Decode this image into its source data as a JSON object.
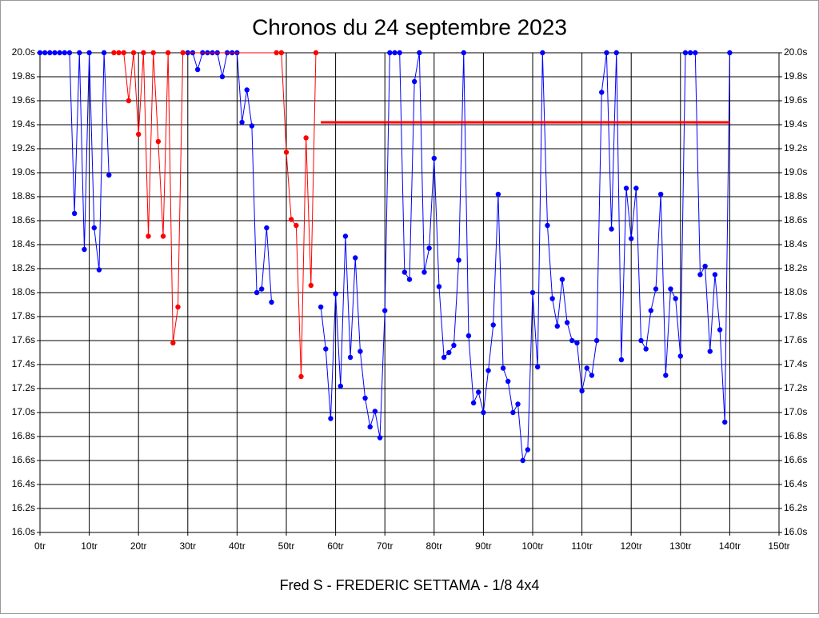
{
  "chart_data": {
    "type": "line",
    "title": "Chronos du 24 septembre 2023",
    "footer": "Fred S - FREDERIC SETTAMA - 1/8 4x4",
    "xlim": [
      0,
      150
    ],
    "xticks": [
      {
        "value": 0,
        "label": "0tr"
      },
      {
        "value": 10,
        "label": "10tr"
      },
      {
        "value": 20,
        "label": "20tr"
      },
      {
        "value": 30,
        "label": "30tr"
      },
      {
        "value": 40,
        "label": "40tr"
      },
      {
        "value": 50,
        "label": "50tr"
      },
      {
        "value": 60,
        "label": "60tr"
      },
      {
        "value": 70,
        "label": "70tr"
      },
      {
        "value": 80,
        "label": "80tr"
      },
      {
        "value": 90,
        "label": "90tr"
      },
      {
        "value": 100,
        "label": "100tr"
      },
      {
        "value": 110,
        "label": "110tr"
      },
      {
        "value": 120,
        "label": "120tr"
      },
      {
        "value": 130,
        "label": "130tr"
      },
      {
        "value": 140,
        "label": "140tr"
      },
      {
        "value": 150,
        "label": "150tr"
      }
    ],
    "ylim": [
      16,
      20
    ],
    "yticks": [
      {
        "value": 16,
        "label": "16.0s"
      },
      {
        "value": 16.2,
        "label": "16.2s"
      },
      {
        "value": 16.4,
        "label": "16.4s"
      },
      {
        "value": 16.6,
        "label": "16.6s"
      },
      {
        "value": 16.8,
        "label": "16.8s"
      },
      {
        "value": 17,
        "label": "17.0s"
      },
      {
        "value": 17.2,
        "label": "17.2s"
      },
      {
        "value": 17.4,
        "label": "17.4s"
      },
      {
        "value": 17.6,
        "label": "17.6s"
      },
      {
        "value": 17.8,
        "label": "17.8s"
      },
      {
        "value": 18,
        "label": "18.0s"
      },
      {
        "value": 18.2,
        "label": "18.2s"
      },
      {
        "value": 18.4,
        "label": "18.4s"
      },
      {
        "value": 18.6,
        "label": "18.6s"
      },
      {
        "value": 18.8,
        "label": "18.8s"
      },
      {
        "value": 19,
        "label": "19.0s"
      },
      {
        "value": 19.2,
        "label": "19.2s"
      },
      {
        "value": 19.4,
        "label": "19.4s"
      },
      {
        "value": 19.6,
        "label": "19.6s"
      },
      {
        "value": 19.8,
        "label": "19.8s"
      },
      {
        "value": 20,
        "label": "20.0s"
      }
    ],
    "grid": true,
    "series": [
      {
        "color": "#0000ff",
        "markers": true,
        "x": [
          0,
          1,
          2,
          3,
          4,
          5,
          6,
          7,
          8,
          9,
          10,
          11,
          12,
          13,
          14,
          15,
          16,
          17,
          18,
          19,
          20,
          21,
          22,
          23,
          24,
          25,
          26,
          27,
          28,
          29,
          30,
          31,
          32,
          33,
          34,
          35,
          36,
          37,
          38,
          39,
          40,
          41,
          42,
          43,
          44,
          45,
          46,
          47,
          48,
          49,
          50,
          51,
          52,
          53,
          54,
          55,
          56,
          57,
          58,
          59,
          60,
          61,
          62,
          63,
          64,
          65,
          66,
          67,
          68,
          69,
          70,
          71,
          72,
          73,
          74,
          75,
          76,
          77,
          78,
          79,
          80,
          81,
          82,
          83,
          84,
          85,
          86,
          87,
          88,
          89,
          90,
          91,
          92,
          93,
          94,
          95,
          96,
          97,
          98,
          99,
          100,
          101,
          102,
          103,
          104,
          105,
          106,
          107,
          108,
          109,
          110,
          111,
          112,
          113,
          114,
          115,
          116,
          117,
          118,
          119,
          120,
          121,
          122,
          123,
          124,
          125,
          126,
          127,
          128,
          129,
          130,
          131,
          132,
          133,
          134,
          135,
          136,
          137,
          138,
          139,
          140
        ],
        "values": [
          20,
          20,
          20,
          20,
          20,
          20,
          20,
          18.66,
          20,
          18.36,
          20,
          18.54,
          18.19,
          20,
          18.98,
          null,
          null,
          null,
          null,
          null,
          null,
          null,
          null,
          null,
          null,
          null,
          null,
          null,
          null,
          null,
          20,
          20,
          19.86,
          20,
          20,
          20,
          20,
          19.8,
          20,
          20,
          20,
          19.42,
          19.69,
          19.39,
          18.0,
          18.03,
          18.54,
          17.92,
          null,
          null,
          null,
          null,
          null,
          null,
          null,
          null,
          null,
          17.88,
          17.53,
          16.95,
          17.99,
          17.22,
          18.47,
          17.46,
          18.29,
          17.51,
          17.12,
          16.88,
          17.01,
          16.79,
          17.85,
          20,
          20,
          20,
          18.17,
          18.11,
          19.76,
          20,
          18.17,
          18.37,
          19.12,
          18.05,
          17.46,
          17.5,
          17.56,
          18.27,
          20,
          17.64,
          17.08,
          17.17,
          17.0,
          17.35,
          17.73,
          18.82,
          17.37,
          17.26,
          17.0,
          17.07,
          16.6,
          16.69,
          18.0,
          17.38,
          20,
          18.56,
          17.95,
          17.72,
          18.11,
          17.75,
          17.6,
          17.58,
          17.18,
          17.37,
          17.31,
          17.6,
          19.67,
          20,
          18.53,
          20,
          17.44,
          18.87,
          18.45,
          18.87,
          17.6,
          17.53,
          17.85,
          18.03,
          18.82,
          17.31,
          18.03,
          17.95,
          17.47,
          20,
          20,
          20,
          18.15,
          18.22,
          17.51,
          18.15,
          17.69,
          16.92,
          20
        ]
      },
      {
        "color": "#ff0000",
        "markers": true,
        "x": [
          15,
          16,
          17,
          18,
          19,
          20,
          21,
          22,
          23,
          24,
          25,
          26,
          27,
          28,
          29,
          48,
          49,
          50,
          51,
          52,
          53,
          54,
          55,
          56
        ],
        "values": [
          20,
          20,
          20,
          19.6,
          20,
          19.32,
          20,
          18.47,
          20,
          19.26,
          18.47,
          20,
          17.58,
          17.88,
          20,
          20,
          20,
          19.17,
          18.61,
          18.56,
          17.3,
          19.29,
          18.06,
          20
        ]
      },
      {
        "color": "#ff0000",
        "markers": false,
        "x": [
          57,
          140
        ],
        "values": [
          19.42,
          19.42
        ]
      }
    ]
  }
}
